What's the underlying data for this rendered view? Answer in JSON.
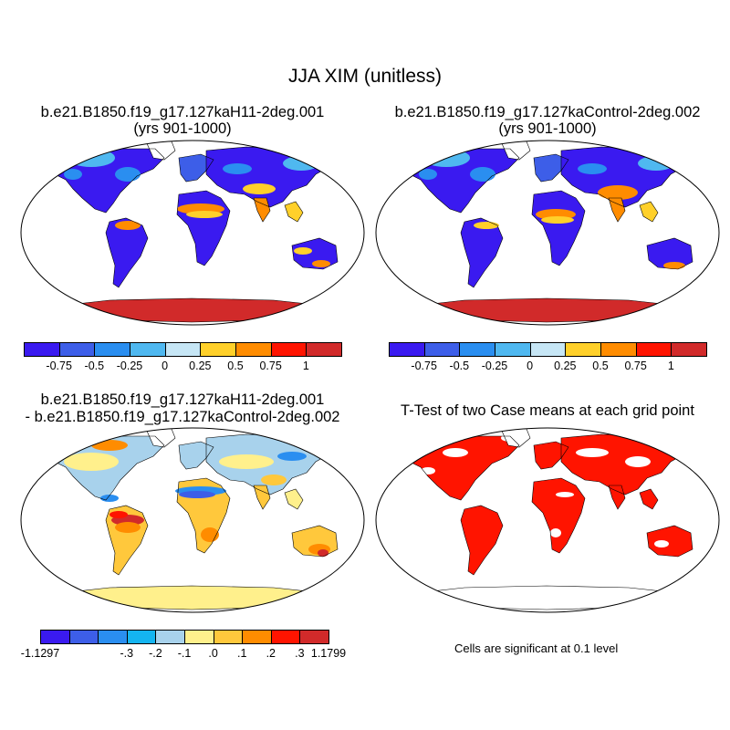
{
  "figure": {
    "title": "JJA XIM (unitless)"
  },
  "panels": [
    {
      "id": "case1",
      "title": "b.e21.B1850.f19_g17.127kaH11-2deg.001",
      "subtitle": "(yrs 901-1000)",
      "colorbar": {
        "colors": [
          "#3a1af0",
          "#3d5ee8",
          "#2a8ef0",
          "#4fb8f0",
          "#c6e6f5",
          "#ffd02a",
          "#ff8c00",
          "#ff1400",
          "#d12a2a"
        ],
        "tick_labels": [
          "-0.75",
          "-0.5",
          "-0.25",
          "0",
          "0.25",
          "0.5",
          "0.75",
          "1"
        ]
      }
    },
    {
      "id": "case2",
      "title": "b.e21.B1850.f19_g17.127kaControl-2deg.002",
      "subtitle": "(yrs 901-1000)",
      "colorbar": {
        "colors": [
          "#3a1af0",
          "#3d5ee8",
          "#2a8ef0",
          "#4fb8f0",
          "#c6e6f5",
          "#ffd02a",
          "#ff8c00",
          "#ff1400",
          "#d12a2a"
        ],
        "tick_labels": [
          "-0.75",
          "-0.5",
          "-0.25",
          "0",
          "0.25",
          "0.5",
          "0.75",
          "1"
        ]
      }
    },
    {
      "id": "diff",
      "title": "b.e21.B1850.f19_g17.127kaH11-2deg.001",
      "subtitle": "- b.e21.B1850.f19_g17.127kaControl-2deg.002",
      "colorbar": {
        "colors": [
          "#3a1af0",
          "#3d5ee8",
          "#2a8ef0",
          "#14b4f0",
          "#a8d2ec",
          "#fff08c",
          "#ffc83c",
          "#ff8c00",
          "#ff1400",
          "#d12a2a"
        ],
        "tick_labels": [
          "-1.1297",
          "-.3",
          "-.2",
          "-.1",
          ".0",
          ".1",
          ".2",
          ".3",
          "1.1799"
        ]
      }
    },
    {
      "id": "ttest",
      "title": "T-Test of two Case means at each grid point",
      "note": "Cells are significant at 0.1 level"
    }
  ]
}
